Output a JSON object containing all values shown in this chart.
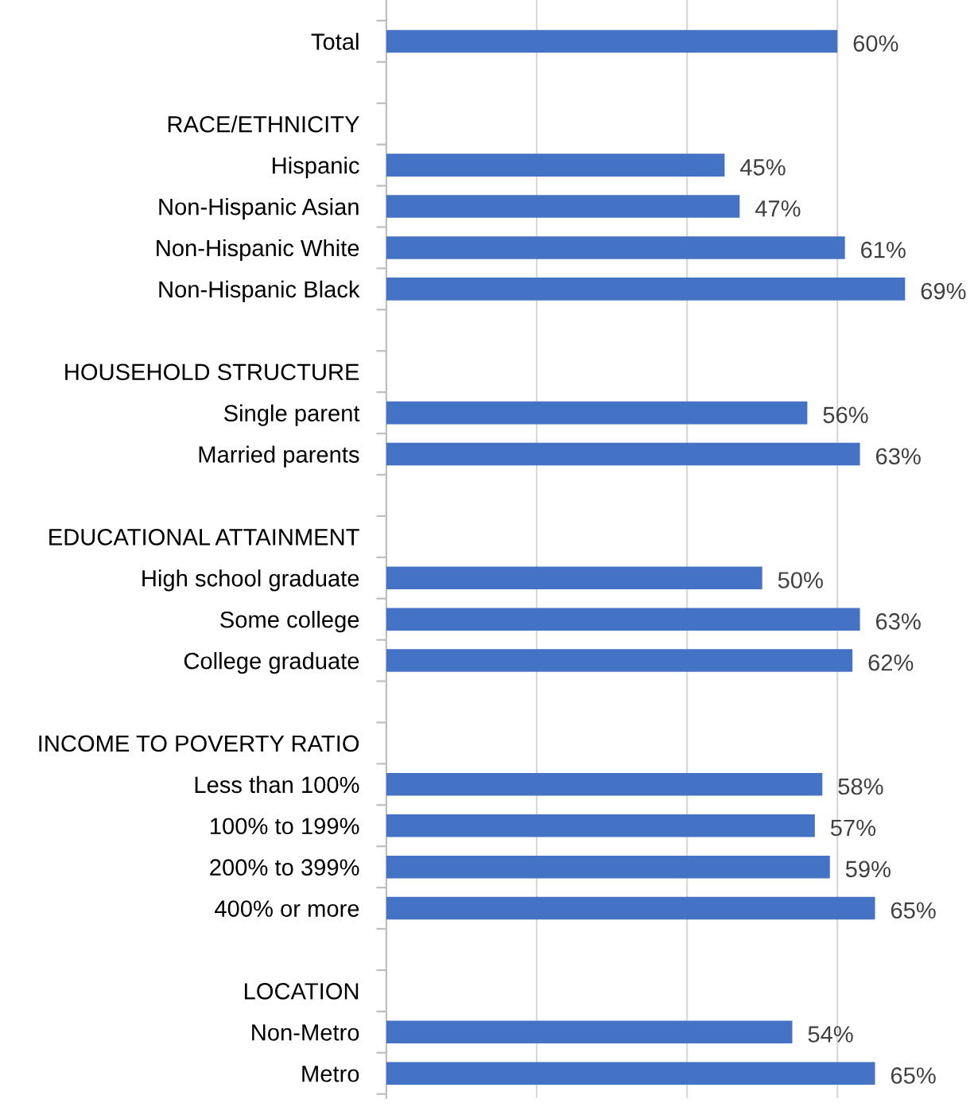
{
  "chart_data": {
    "type": "bar",
    "orientation": "horizontal",
    "categories": [
      "Total",
      null,
      "RACE/ETHNICITY",
      "Hispanic",
      "Non-Hispanic Asian",
      "Non-Hispanic White",
      "Non-Hispanic Black",
      null,
      "HOUSEHOLD STRUCTURE",
      "Single parent",
      "Married parents",
      null,
      "EDUCATIONAL ATTAINMENT",
      "High school graduate",
      "Some college",
      "College graduate",
      null,
      "INCOME TO POVERTY RATIO",
      "Less than 100%",
      "100% to 199%",
      "200% to 399%",
      "400% or more",
      null,
      "LOCATION",
      "Non-Metro",
      "Metro"
    ],
    "values": [
      60,
      null,
      null,
      45,
      47,
      61,
      69,
      null,
      null,
      56,
      63,
      null,
      null,
      50,
      63,
      62,
      null,
      null,
      58,
      57,
      59,
      65,
      null,
      null,
      54,
      65
    ],
    "value_labels": [
      "60%",
      null,
      null,
      "45%",
      "47%",
      "61%",
      "69%",
      null,
      null,
      "56%",
      "63%",
      null,
      null,
      "50%",
      "63%",
      "62%",
      null,
      null,
      "58%",
      "57%",
      "59%",
      "65%",
      null,
      null,
      "54%",
      "65%"
    ],
    "color": "#4472c4",
    "xticks": [
      {
        "value": 0,
        "label": null
      },
      {
        "value": 20,
        "label": null
      },
      {
        "value": 40,
        "label": null
      },
      {
        "value": 60,
        "label": null
      }
    ],
    "tick_labels": "y",
    "grid": "x",
    "legend": false
  }
}
